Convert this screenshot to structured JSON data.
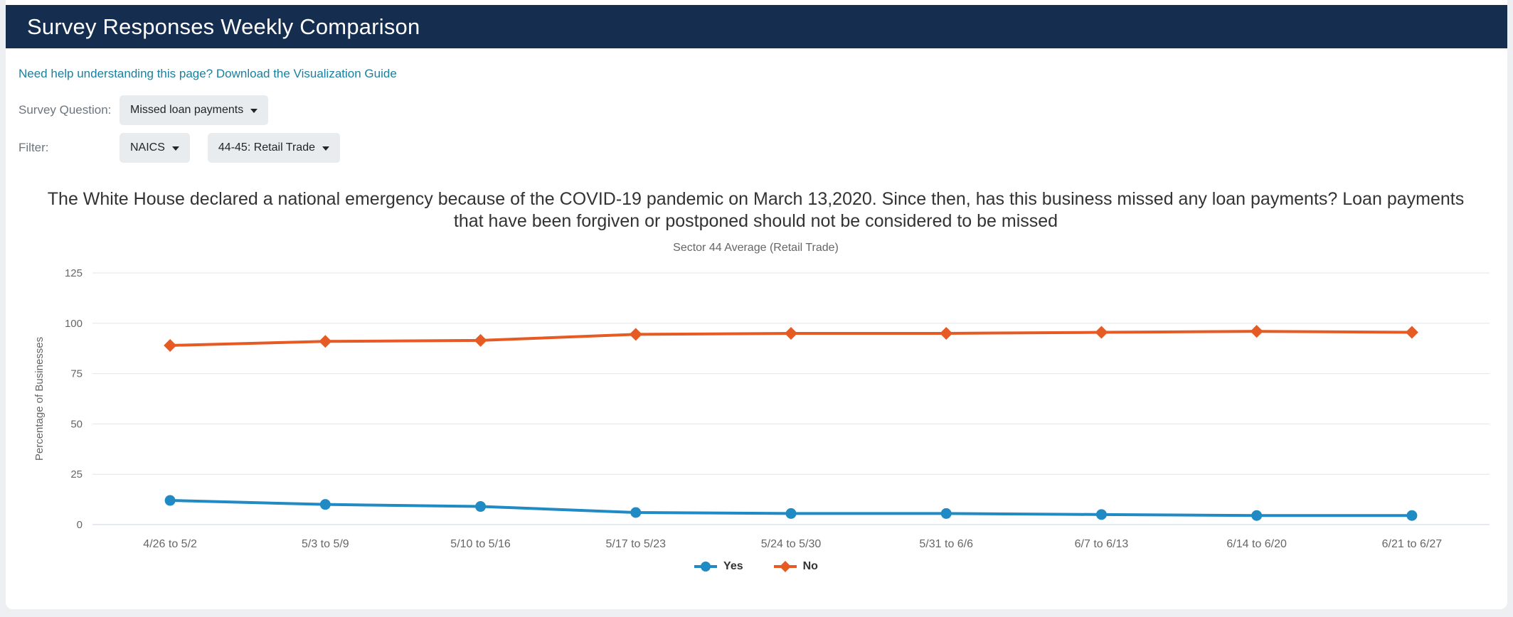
{
  "page": {
    "background_color": "#edeff2",
    "card_color": "#ffffff"
  },
  "header": {
    "title": "Survey Responses Weekly Comparison",
    "background_color": "#152e4f",
    "text_color": "#ffffff"
  },
  "help_link": {
    "text": "Need help understanding this page? Download the Visualization Guide",
    "color": "#1b7f9f"
  },
  "controls": {
    "survey_question_label": "Survey Question:",
    "survey_question_value": "Missed loan payments",
    "filter_label": "Filter:",
    "filter_type_value": "NAICS",
    "filter_value": "44-45: Retail Trade",
    "caret_icon": "caret-down"
  },
  "chart_data": {
    "type": "line",
    "title": "The White House declared a national emergency because of the COVID-19 pandemic on March 13,2020. Since then, has this business missed any loan payments? Loan payments that have been forgiven or postponed should not be considered to be missed",
    "subtitle": "Sector 44 Average (Retail Trade)",
    "xlabel": "",
    "ylabel": "Percentage of Businesses",
    "ylim": [
      0,
      125
    ],
    "yticks": [
      0,
      25,
      50,
      75,
      100,
      125
    ],
    "grid": true,
    "legend_position": "bottom",
    "categories": [
      "4/26 to 5/2",
      "5/3 to 5/9",
      "5/10 to 5/16",
      "5/17 to 5/23",
      "5/24 to 5/30",
      "5/31 to 6/6",
      "6/7 to 6/13",
      "6/14 to 6/20",
      "6/21 to 6/27"
    ],
    "series": [
      {
        "name": "Yes",
        "color": "#1f8ac4",
        "marker": "circle",
        "values": [
          12,
          10,
          9,
          6,
          5.5,
          5.5,
          5,
          4.5,
          4.5
        ]
      },
      {
        "name": "No",
        "color": "#e65b24",
        "marker": "diamond",
        "values": [
          89,
          91,
          91.5,
          94.5,
          95,
          95,
          95.5,
          96,
          95.5
        ]
      }
    ],
    "gridline_color": "#e6e6e6",
    "axis_line_color": "#ccd6eb",
    "tick_label_color": "#666666"
  }
}
